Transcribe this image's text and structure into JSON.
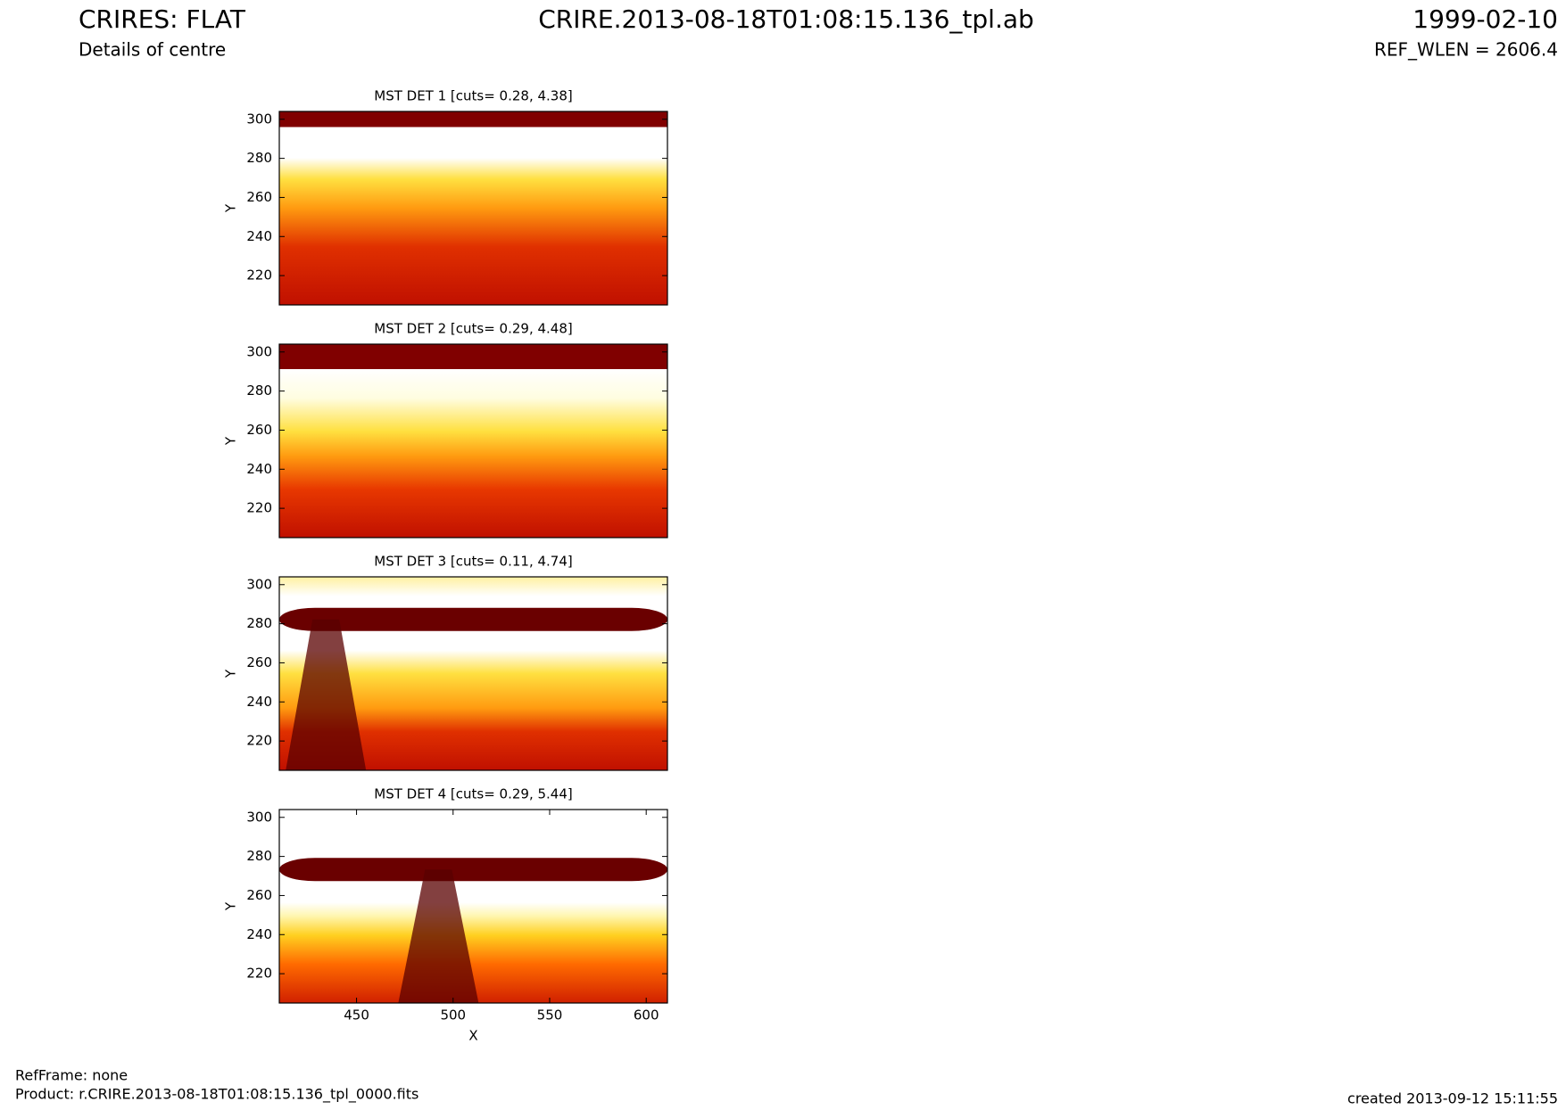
{
  "header": {
    "title": "CRIRES: FLAT",
    "subtitle": "Details of centre",
    "file": "CRIRE.2013-08-18T01:08:15.136_tpl.ab",
    "date": "1999-02-10",
    "ref_wlen": "REF_WLEN = 2606.4"
  },
  "footer": {
    "ref_frame": "RefFrame: none",
    "product": "Product: r.CRIRE.2013-08-18T01:08:15.136_tpl_0000.fits",
    "created": "created 2013-09-12 15:11:55"
  },
  "chart_data": [
    {
      "type": "heatmap",
      "title": "MST DET 1 [cuts= 0.28, 4.38]",
      "y_label": "Y",
      "xlim": [
        410,
        611
      ],
      "ylim": [
        205,
        304
      ],
      "yticks": [
        220,
        240,
        260,
        280,
        300
      ]
    },
    {
      "type": "heatmap",
      "title": "MST DET 2 [cuts= 0.29, 4.48]",
      "y_label": "Y",
      "xlim": [
        410,
        611
      ],
      "ylim": [
        205,
        304
      ],
      "yticks": [
        220,
        240,
        260,
        280,
        300
      ]
    },
    {
      "type": "heatmap",
      "title": "MST DET 3 [cuts= 0.11, 4.74]",
      "y_label": "Y",
      "xlim": [
        410,
        611
      ],
      "ylim": [
        205,
        304
      ],
      "yticks": [
        220,
        240,
        260,
        280,
        300
      ]
    },
    {
      "type": "heatmap",
      "title": "MST DET 4 [cuts= 0.29, 5.44]",
      "y_label": "Y",
      "x_label": "X",
      "xlim": [
        410,
        611
      ],
      "ylim": [
        205,
        304
      ],
      "yticks": [
        220,
        240,
        260,
        280,
        300
      ],
      "xticks": [
        450,
        500,
        550,
        600
      ]
    }
  ]
}
